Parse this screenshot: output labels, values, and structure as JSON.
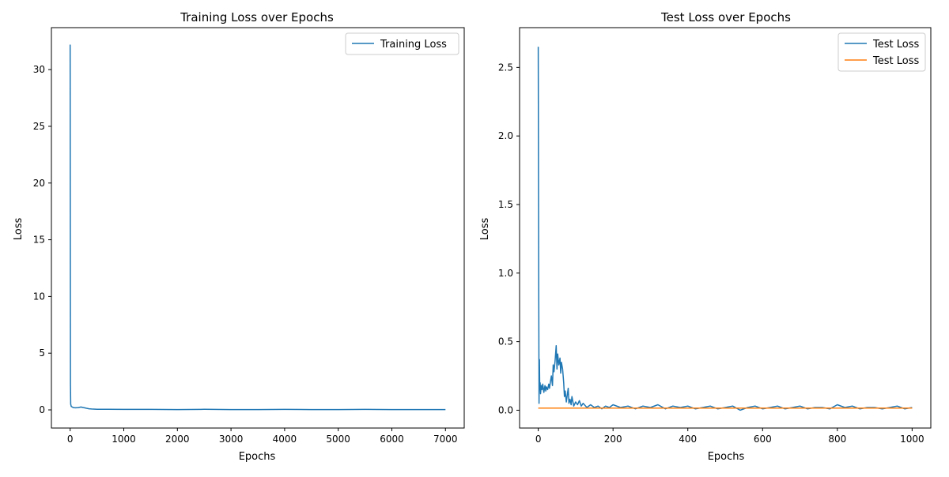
{
  "chart_data": [
    {
      "type": "line",
      "title": "Training Loss over Epochs",
      "xlabel": "Epochs",
      "ylabel": "Loss",
      "xlim": [
        -350,
        7350
      ],
      "ylim": [
        -1.6,
        33.7
      ],
      "xticks": [
        0,
        1000,
        2000,
        3000,
        4000,
        5000,
        6000,
        7000
      ],
      "yticks": [
        0,
        5,
        10,
        15,
        20,
        25,
        30
      ],
      "legend": "top-right",
      "grid": false,
      "series": [
        {
          "name": "Training Loss",
          "color": "#1f77b4",
          "x": [
            0,
            5,
            10,
            20,
            40,
            60,
            100,
            150,
            200,
            250,
            300,
            350,
            400,
            500,
            700,
            1000,
            1500,
            2000,
            2500,
            3000,
            3500,
            4000,
            4500,
            5000,
            5500,
            6000,
            6500,
            7000
          ],
          "y": [
            32.2,
            2.3,
            0.5,
            0.3,
            0.25,
            0.2,
            0.18,
            0.2,
            0.25,
            0.2,
            0.15,
            0.1,
            0.08,
            0.06,
            0.05,
            0.04,
            0.04,
            0.03,
            0.05,
            0.03,
            0.03,
            0.04,
            0.03,
            0.03,
            0.04,
            0.03,
            0.03,
            0.03
          ]
        }
      ]
    },
    {
      "type": "line",
      "title": "Test Loss over Epochs",
      "xlabel": "Epochs",
      "ylabel": "Loss",
      "xlim": [
        -50,
        1050
      ],
      "ylim": [
        -0.13,
        2.79
      ],
      "xticks": [
        0,
        200,
        400,
        600,
        800,
        1000
      ],
      "yticks": [
        0.0,
        0.5,
        1.0,
        1.5,
        2.0,
        2.5
      ],
      "legend": "top-right",
      "grid": false,
      "series": [
        {
          "name": "Test Loss",
          "color": "#1f77b4",
          "x": [
            0,
            1,
            2,
            3,
            4,
            5,
            6,
            8,
            10,
            12,
            15,
            18,
            20,
            22,
            25,
            28,
            30,
            32,
            35,
            38,
            40,
            42,
            45,
            48,
            50,
            52,
            55,
            58,
            60,
            62,
            65,
            68,
            70,
            72,
            75,
            78,
            80,
            82,
            85,
            88,
            90,
            95,
            100,
            105,
            110,
            115,
            120,
            130,
            140,
            150,
            160,
            170,
            180,
            190,
            200,
            220,
            240,
            260,
            280,
            300,
            320,
            340,
            360,
            380,
            400,
            420,
            440,
            460,
            480,
            500,
            520,
            540,
            560,
            580,
            600,
            620,
            640,
            660,
            680,
            700,
            720,
            740,
            760,
            780,
            800,
            820,
            840,
            860,
            880,
            900,
            920,
            940,
            960,
            980,
            1000
          ],
          "y": [
            2.65,
            1.2,
            0.05,
            0.37,
            0.15,
            0.2,
            0.12,
            0.18,
            0.15,
            0.19,
            0.13,
            0.18,
            0.14,
            0.17,
            0.15,
            0.19,
            0.16,
            0.2,
            0.25,
            0.18,
            0.33,
            0.28,
            0.36,
            0.47,
            0.3,
            0.41,
            0.33,
            0.38,
            0.27,
            0.35,
            0.3,
            0.2,
            0.1,
            0.14,
            0.06,
            0.12,
            0.16,
            0.05,
            0.08,
            0.04,
            0.1,
            0.03,
            0.06,
            0.04,
            0.07,
            0.03,
            0.05,
            0.02,
            0.04,
            0.02,
            0.03,
            0.01,
            0.03,
            0.02,
            0.04,
            0.02,
            0.03,
            0.01,
            0.03,
            0.02,
            0.04,
            0.01,
            0.03,
            0.02,
            0.03,
            0.01,
            0.02,
            0.03,
            0.01,
            0.02,
            0.03,
            0.0,
            0.02,
            0.03,
            0.01,
            0.02,
            0.03,
            0.01,
            0.02,
            0.03,
            0.01,
            0.02,
            0.02,
            0.01,
            0.04,
            0.02,
            0.03,
            0.01,
            0.02,
            0.02,
            0.01,
            0.02,
            0.03,
            0.01,
            0.02
          ]
        },
        {
          "name": "Test Loss",
          "color": "#ff7f0e",
          "x": [
            0,
            1000
          ],
          "y": [
            0.015,
            0.015
          ]
        }
      ]
    }
  ]
}
